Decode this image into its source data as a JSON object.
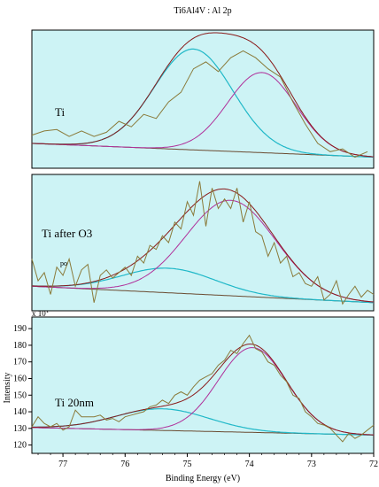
{
  "chart_data": {
    "type": "line",
    "title": "Ti6Al4V : Al 2p",
    "xlabel": "Binding Energy (eV)",
    "ylabel": "Intensity",
    "xlim": [
      77.5,
      72
    ],
    "x_reversed": true,
    "x_ticks": [
      77,
      76,
      75,
      74,
      73,
      72
    ],
    "y_multiplier": "x 10",
    "y_multiplier_exp": "1",
    "ylim": [
      115,
      197
    ],
    "y_ticks": [
      120,
      130,
      140,
      150,
      160,
      170,
      180,
      190
    ],
    "background_color": "#cdf3f5",
    "colors": {
      "raw": "#8a7a3a",
      "envelope": "#8a1a1a",
      "component_low_be": "#b0309a",
      "component_high_be": "#20b8c8",
      "background": "#6a4a30"
    },
    "panels": [
      {
        "label": "Ti",
        "annotation": "",
        "ylim": [
          0,
          100
        ],
        "baseline": [
          [
            77.5,
            18
          ],
          [
            72,
            8
          ]
        ],
        "component_low_be": {
          "center": 73.8,
          "height": 58,
          "sigma": 0.55
        },
        "component_high_be": {
          "center": 74.9,
          "height": 73,
          "sigma": 0.63
        },
        "raw": [
          [
            77.5,
            24
          ],
          [
            77.3,
            27
          ],
          [
            77.1,
            28
          ],
          [
            76.9,
            23
          ],
          [
            76.7,
            27
          ],
          [
            76.5,
            23
          ],
          [
            76.3,
            26
          ],
          [
            76.1,
            34
          ],
          [
            75.9,
            30
          ],
          [
            75.7,
            39
          ],
          [
            75.5,
            36
          ],
          [
            75.3,
            48
          ],
          [
            75.1,
            55
          ],
          [
            74.9,
            72
          ],
          [
            74.7,
            77
          ],
          [
            74.5,
            70
          ],
          [
            74.3,
            80
          ],
          [
            74.1,
            85
          ],
          [
            73.9,
            80
          ],
          [
            73.7,
            72
          ],
          [
            73.5,
            66
          ],
          [
            73.3,
            48
          ],
          [
            73.1,
            32
          ],
          [
            72.9,
            18
          ],
          [
            72.7,
            12
          ],
          [
            72.5,
            14
          ],
          [
            72.3,
            8
          ],
          [
            72.1,
            12
          ]
        ]
      },
      {
        "label": "Ti after O3",
        "annotation": "po",
        "ylim": [
          0,
          100
        ],
        "baseline": [
          [
            77.5,
            18
          ],
          [
            72,
            6
          ]
        ],
        "component_low_be": {
          "center": 74.3,
          "height": 70,
          "sigma": 0.72
        },
        "component_high_be": {
          "center": 75.3,
          "height": 18,
          "sigma": 0.75
        },
        "raw": [
          [
            77.5,
            38
          ],
          [
            77.4,
            22
          ],
          [
            77.3,
            28
          ],
          [
            77.2,
            12
          ],
          [
            77.1,
            32
          ],
          [
            77.0,
            26
          ],
          [
            76.9,
            38
          ],
          [
            76.8,
            18
          ],
          [
            76.7,
            30
          ],
          [
            76.6,
            34
          ],
          [
            76.5,
            6
          ],
          [
            76.4,
            26
          ],
          [
            76.3,
            30
          ],
          [
            76.2,
            24
          ],
          [
            76.1,
            28
          ],
          [
            76.0,
            32
          ],
          [
            75.9,
            26
          ],
          [
            75.8,
            40
          ],
          [
            75.7,
            35
          ],
          [
            75.6,
            48
          ],
          [
            75.5,
            45
          ],
          [
            75.4,
            55
          ],
          [
            75.3,
            50
          ],
          [
            75.2,
            65
          ],
          [
            75.1,
            60
          ],
          [
            75.0,
            80
          ],
          [
            74.9,
            70
          ],
          [
            74.8,
            95
          ],
          [
            74.7,
            62
          ],
          [
            74.6,
            90
          ],
          [
            74.5,
            75
          ],
          [
            74.4,
            82
          ],
          [
            74.3,
            75
          ],
          [
            74.2,
            90
          ],
          [
            74.1,
            65
          ],
          [
            74.0,
            80
          ],
          [
            73.9,
            58
          ],
          [
            73.8,
            55
          ],
          [
            73.7,
            40
          ],
          [
            73.6,
            50
          ],
          [
            73.5,
            35
          ],
          [
            73.4,
            40
          ],
          [
            73.3,
            25
          ],
          [
            73.2,
            28
          ],
          [
            73.1,
            20
          ],
          [
            73.0,
            18
          ],
          [
            72.9,
            25
          ],
          [
            72.8,
            8
          ],
          [
            72.7,
            12
          ],
          [
            72.6,
            22
          ],
          [
            72.5,
            5
          ],
          [
            72.4,
            12
          ],
          [
            72.3,
            18
          ],
          [
            72.2,
            10
          ],
          [
            72.1,
            15
          ],
          [
            72.0,
            12
          ]
        ]
      },
      {
        "label": "Ti 20nm",
        "annotation": "",
        "ylim": [
          115,
          197
        ],
        "baseline": [
          [
            77.5,
            130.5
          ],
          [
            72,
            126
          ]
        ],
        "component_low_be": {
          "center": 73.95,
          "height": 51,
          "sigma": 0.55
        },
        "component_high_be": {
          "center": 75.4,
          "height": 13,
          "sigma": 0.75
        },
        "raw": [
          [
            77.5,
            131
          ],
          [
            77.4,
            137
          ],
          [
            77.3,
            133
          ],
          [
            77.2,
            131
          ],
          [
            77.1,
            133
          ],
          [
            77.0,
            129
          ],
          [
            76.9,
            131
          ],
          [
            76.8,
            141
          ],
          [
            76.7,
            137
          ],
          [
            76.6,
            137
          ],
          [
            76.5,
            137
          ],
          [
            76.4,
            138
          ],
          [
            76.3,
            135
          ],
          [
            76.2,
            136
          ],
          [
            76.1,
            134
          ],
          [
            76.0,
            137
          ],
          [
            75.9,
            138
          ],
          [
            75.8,
            139
          ],
          [
            75.7,
            140
          ],
          [
            75.6,
            143
          ],
          [
            75.5,
            144
          ],
          [
            75.4,
            147
          ],
          [
            75.3,
            145
          ],
          [
            75.2,
            150
          ],
          [
            75.1,
            152
          ],
          [
            75.0,
            150
          ],
          [
            74.9,
            155
          ],
          [
            74.8,
            159
          ],
          [
            74.7,
            161
          ],
          [
            74.6,
            163
          ],
          [
            74.5,
            168
          ],
          [
            74.4,
            171
          ],
          [
            74.3,
            177
          ],
          [
            74.2,
            175
          ],
          [
            74.1,
            181
          ],
          [
            74.0,
            186
          ],
          [
            73.9,
            178
          ],
          [
            73.8,
            176
          ],
          [
            73.7,
            170
          ],
          [
            73.6,
            168
          ],
          [
            73.5,
            162
          ],
          [
            73.4,
            158
          ],
          [
            73.3,
            150
          ],
          [
            73.2,
            148
          ],
          [
            73.1,
            140
          ],
          [
            73.0,
            137
          ],
          [
            72.9,
            133
          ],
          [
            72.8,
            132
          ],
          [
            72.7,
            130
          ],
          [
            72.6,
            126
          ],
          [
            72.5,
            122
          ],
          [
            72.4,
            127
          ],
          [
            72.3,
            124
          ],
          [
            72.2,
            126
          ],
          [
            72.1,
            129
          ],
          [
            72.0,
            132
          ]
        ]
      }
    ]
  }
}
